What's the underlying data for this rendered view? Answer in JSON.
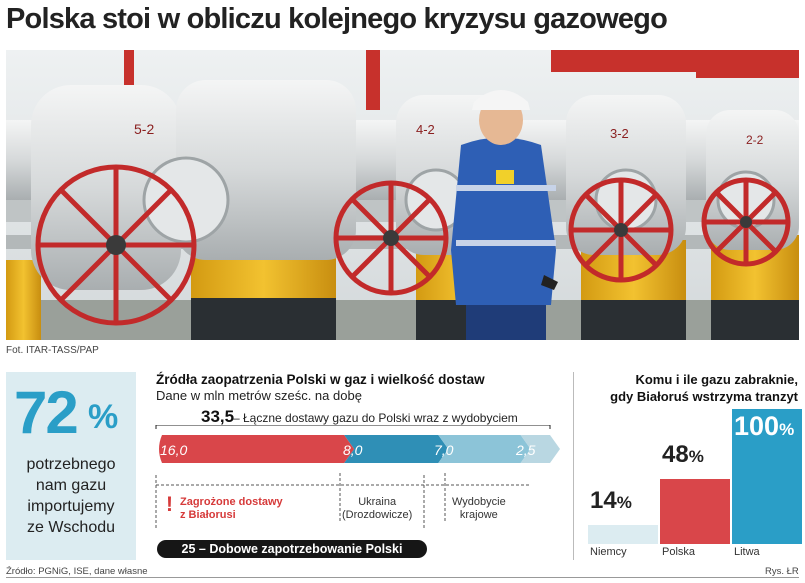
{
  "headline": "Polska stoi w obliczu kolejnego kryzysu gazowego",
  "photo": {
    "credit": "Fot. ITAR-TASS/PAP",
    "valve_labels": [
      "5-2",
      "4-2",
      "3-2",
      "2-2"
    ]
  },
  "stat": {
    "value": "72",
    "unit": "%",
    "text": [
      "potrzebnego",
      "nam gazu",
      "importujemy",
      "ze Wschodu"
    ]
  },
  "supply": {
    "title": "Źródła zaopatrzenia Polski w gaz i wielkość dostaw",
    "subtitle": "Dane w mln metrów sześc. na dobę",
    "total_value": "33,5",
    "total_label": "– Łączne dostawy gazu do Polski wraz z wydobyciem",
    "segments": [
      {
        "label": "16,0",
        "value": 16.0,
        "color": "#d9464a"
      },
      {
        "label": "8,0",
        "value": 8.0,
        "color": "#2f8fb6"
      },
      {
        "label": "7,0",
        "value": 7.0,
        "color": "#8cc4d8"
      },
      {
        "label": "2,5",
        "value": 2.5,
        "color": "#b9d7e2"
      }
    ],
    "warning": [
      "Zagrożone dostawy",
      "z Białorusi"
    ],
    "notes": {
      "ukraine": [
        "Ukraina",
        "(Drozdowicze)"
      ],
      "production": [
        "Wydobycie",
        "krajowe"
      ]
    },
    "demand_label": "25 – Dobowe zapotrzebowanie Polski"
  },
  "shortfall": {
    "title": [
      "Komu i ile gazu zabraknie,",
      "gdy Białoruś wstrzyma tranzyt"
    ],
    "bars": [
      {
        "country": "Niemcy",
        "value": 14,
        "label": "14",
        "color": "#dcecf1",
        "text_color": "#222"
      },
      {
        "country": "Polska",
        "value": 48,
        "label": "48",
        "color": "#d9464a",
        "text_color": "#222"
      },
      {
        "country": "Litwa",
        "value": 100,
        "label": "100",
        "color": "#2a9ec7",
        "text_color": "#ffffff"
      }
    ],
    "unit": "%"
  },
  "footer": {
    "source": "Źródło: PGNiG, ISE, dane własne",
    "credit": "Rys. ŁR"
  }
}
